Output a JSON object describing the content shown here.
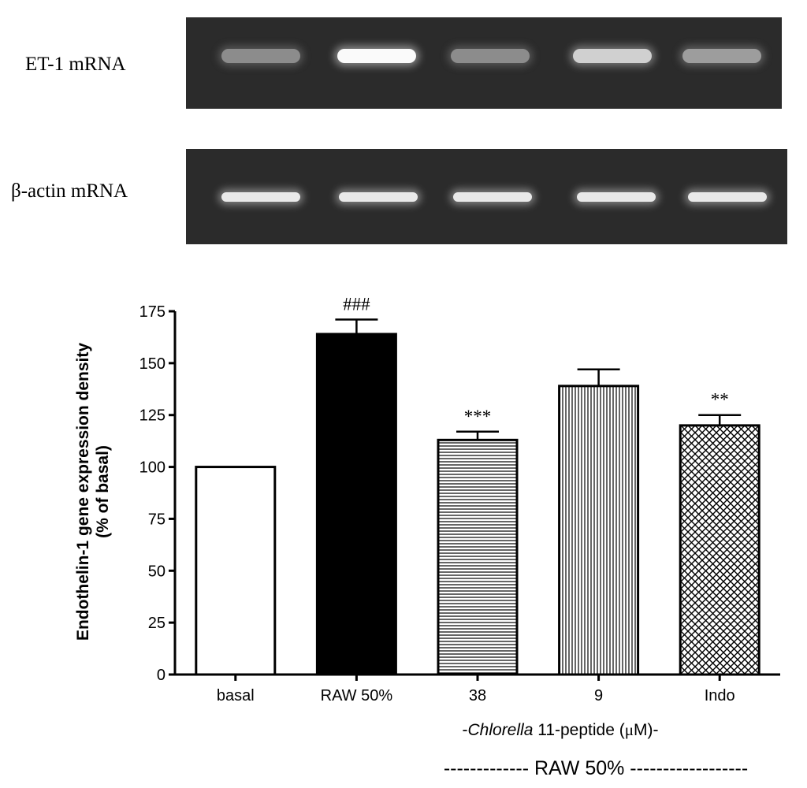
{
  "gel": {
    "rows": [
      {
        "label": "ET-1 mRNA",
        "intensities": [
          0.35,
          1.0,
          0.35,
          0.75,
          0.45
        ]
      },
      {
        "label": "β-actin mRNA",
        "intensities": [
          0.9,
          0.9,
          0.9,
          0.9,
          0.9
        ]
      }
    ]
  },
  "chart_data": {
    "type": "bar",
    "categories": [
      "basal",
      "RAW 50%",
      "38",
      "9",
      "Indo"
    ],
    "values": [
      100,
      164,
      113,
      139,
      120
    ],
    "errors": [
      0,
      7,
      4,
      8,
      5
    ],
    "significance": [
      "",
      "###",
      "***",
      "",
      "**"
    ],
    "patterns": [
      "white",
      "black",
      "horizontal-lines",
      "vertical-lines",
      "crosshatch"
    ],
    "ylabel_line1": "Endothelin-1 gene expression density",
    "ylabel_line2": "(% of basal)",
    "ylim": [
      0,
      175
    ],
    "yticks": [
      0,
      25,
      50,
      75,
      100,
      125,
      150,
      175
    ],
    "grid": false
  },
  "annotations": {
    "peptide_prefix": "-",
    "peptide_italic": "Chlorella",
    "peptide_rest": " 11-peptide (",
    "peptide_mu": "μ",
    "peptide_end": "M)-",
    "footer": "------------- RAW 50% ------------------"
  }
}
